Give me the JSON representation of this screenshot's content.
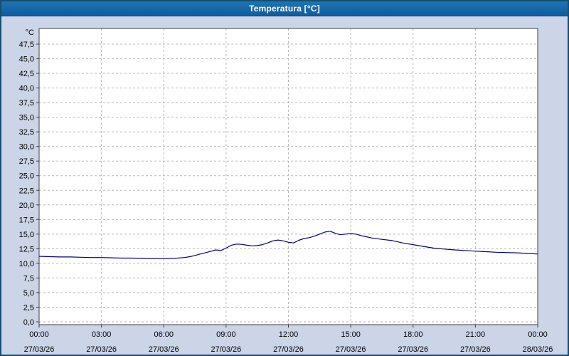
{
  "window": {
    "title": "Temperatura [°C]"
  },
  "chart_data": {
    "type": "line",
    "title": "Temperatura [°C]",
    "y_axis": {
      "unit_label": "°C",
      "min": 0,
      "max": 47.5,
      "step": 2.5,
      "tick_labels": [
        "0,0",
        "2,5",
        "5,0",
        "7,5",
        "10,0",
        "12,5",
        "15,0",
        "17,5",
        "20,0",
        "22,5",
        "25,0",
        "27,5",
        "30,0",
        "32,5",
        "35,0",
        "37,5",
        "40,0",
        "42,5",
        "45,0",
        "47,5"
      ]
    },
    "x_axis": {
      "span_hours": 24,
      "ticks": [
        {
          "hour": 0,
          "time": "00:00",
          "date": "27/03/26"
        },
        {
          "hour": 3,
          "time": "03:00",
          "date": "27/03/26"
        },
        {
          "hour": 6,
          "time": "06:00",
          "date": "27/03/26"
        },
        {
          "hour": 9,
          "time": "09:00",
          "date": "27/03/26"
        },
        {
          "hour": 12,
          "time": "12:00",
          "date": "27/03/26"
        },
        {
          "hour": 15,
          "time": "15:00",
          "date": "27/03/26"
        },
        {
          "hour": 18,
          "time": "18:00",
          "date": "27/03/26"
        },
        {
          "hour": 21,
          "time": "21:00",
          "date": "27/03/26"
        },
        {
          "hour": 24,
          "time": "00:00",
          "date": "28/03/26"
        }
      ]
    },
    "grid": {
      "color": "#b8b8b8",
      "style": "dashed"
    },
    "colors": {
      "titlebar": "#1667a7",
      "titlebar_text": "#ffffff",
      "background": "#ccd4e8",
      "plot_bg": "#ffffff",
      "axis": "#404040",
      "line": "#000080"
    },
    "series": [
      {
        "name": "Temperatura",
        "color": "#000080",
        "points": [
          [
            0,
            11.2
          ],
          [
            0.5,
            11.15
          ],
          [
            1,
            11.1
          ],
          [
            1.5,
            11.1
          ],
          [
            2,
            11.05
          ],
          [
            2.5,
            11.0
          ],
          [
            3,
            11.0
          ],
          [
            3.5,
            10.95
          ],
          [
            4,
            10.9
          ],
          [
            4.5,
            10.9
          ],
          [
            5,
            10.85
          ],
          [
            5.5,
            10.8
          ],
          [
            6,
            10.8
          ],
          [
            6.5,
            10.85
          ],
          [
            7,
            11.0
          ],
          [
            7.25,
            11.15
          ],
          [
            7.5,
            11.35
          ],
          [
            7.75,
            11.6
          ],
          [
            8,
            11.8
          ],
          [
            8.25,
            12.05
          ],
          [
            8.5,
            12.3
          ],
          [
            8.75,
            12.2
          ],
          [
            9,
            12.6
          ],
          [
            9.25,
            13.1
          ],
          [
            9.5,
            13.3
          ],
          [
            9.75,
            13.25
          ],
          [
            10,
            13.1
          ],
          [
            10.25,
            13.0
          ],
          [
            10.5,
            13.05
          ],
          [
            10.75,
            13.2
          ],
          [
            11,
            13.5
          ],
          [
            11.25,
            13.85
          ],
          [
            11.5,
            14.0
          ],
          [
            11.75,
            13.85
          ],
          [
            12,
            13.6
          ],
          [
            12.25,
            13.5
          ],
          [
            12.5,
            13.95
          ],
          [
            12.75,
            14.25
          ],
          [
            13,
            14.4
          ],
          [
            13.25,
            14.65
          ],
          [
            13.5,
            15.0
          ],
          [
            13.75,
            15.35
          ],
          [
            14,
            15.5
          ],
          [
            14.25,
            15.15
          ],
          [
            14.5,
            14.9
          ],
          [
            14.75,
            15.0
          ],
          [
            15,
            15.1
          ],
          [
            15.25,
            15.0
          ],
          [
            15.5,
            14.75
          ],
          [
            15.75,
            14.55
          ],
          [
            16,
            14.35
          ],
          [
            16.5,
            14.1
          ],
          [
            17,
            13.9
          ],
          [
            17.5,
            13.5
          ],
          [
            18,
            13.2
          ],
          [
            18.5,
            12.9
          ],
          [
            19,
            12.6
          ],
          [
            19.5,
            12.45
          ],
          [
            20,
            12.3
          ],
          [
            20.5,
            12.2
          ],
          [
            21,
            12.1
          ],
          [
            21.5,
            12.0
          ],
          [
            22,
            11.9
          ],
          [
            22.5,
            11.85
          ],
          [
            23,
            11.8
          ],
          [
            23.5,
            11.7
          ],
          [
            24,
            11.6
          ]
        ]
      }
    ]
  }
}
